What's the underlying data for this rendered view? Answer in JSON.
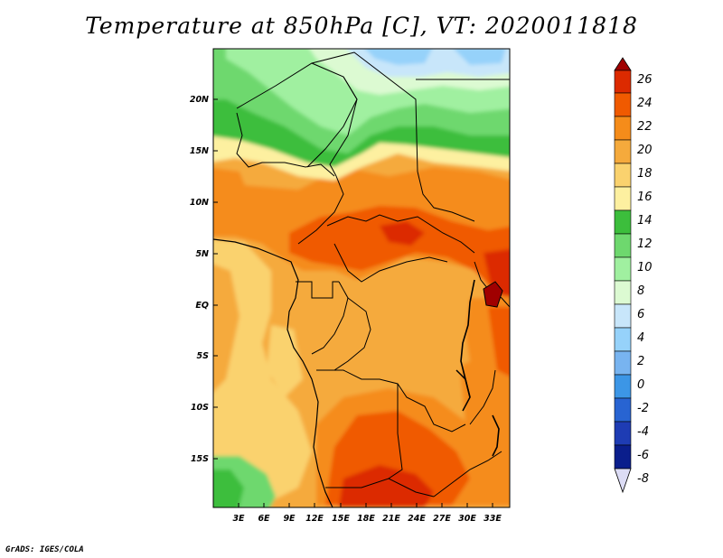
{
  "title": "Temperature at 850hPa [C], VT: 2020011818",
  "footer": "GrADS: IGES/COLA",
  "map": {
    "lon_labels": [
      "3E",
      "6E",
      "9E",
      "12E",
      "15E",
      "18E",
      "21E",
      "24E",
      "27E",
      "30E",
      "33E"
    ],
    "lat_labels": [
      "20N",
      "15N",
      "10N",
      "5N",
      "EQ",
      "5S",
      "10S",
      "15S"
    ]
  },
  "colorbar": {
    "labels": [
      "26",
      "24",
      "22",
      "20",
      "18",
      "16",
      "14",
      "12",
      "10",
      "8",
      "6",
      "4",
      "2",
      "0",
      "-2",
      "-4",
      "-6",
      "-8"
    ],
    "colors": {
      "c28": "#a00000",
      "c26": "#dc2a00",
      "c24": "#f05a00",
      "c22": "#f58c1a",
      "c20": "#f5aa3c",
      "c18": "#fad26e",
      "c16": "#fdf0a0",
      "c14": "#3cbe3c",
      "c12": "#6ed86e",
      "c10": "#a0f0a0",
      "c8": "#dcfad2",
      "c6": "#c8e6fa",
      "c4": "#96d2fa",
      "c2": "#78b4f0",
      "c0": "#3c96e6",
      "cm2": "#2864d2",
      "cm4": "#1e3cb4",
      "cm6": "#0a1e8c",
      "cm8": "#dcdcf5"
    }
  }
}
